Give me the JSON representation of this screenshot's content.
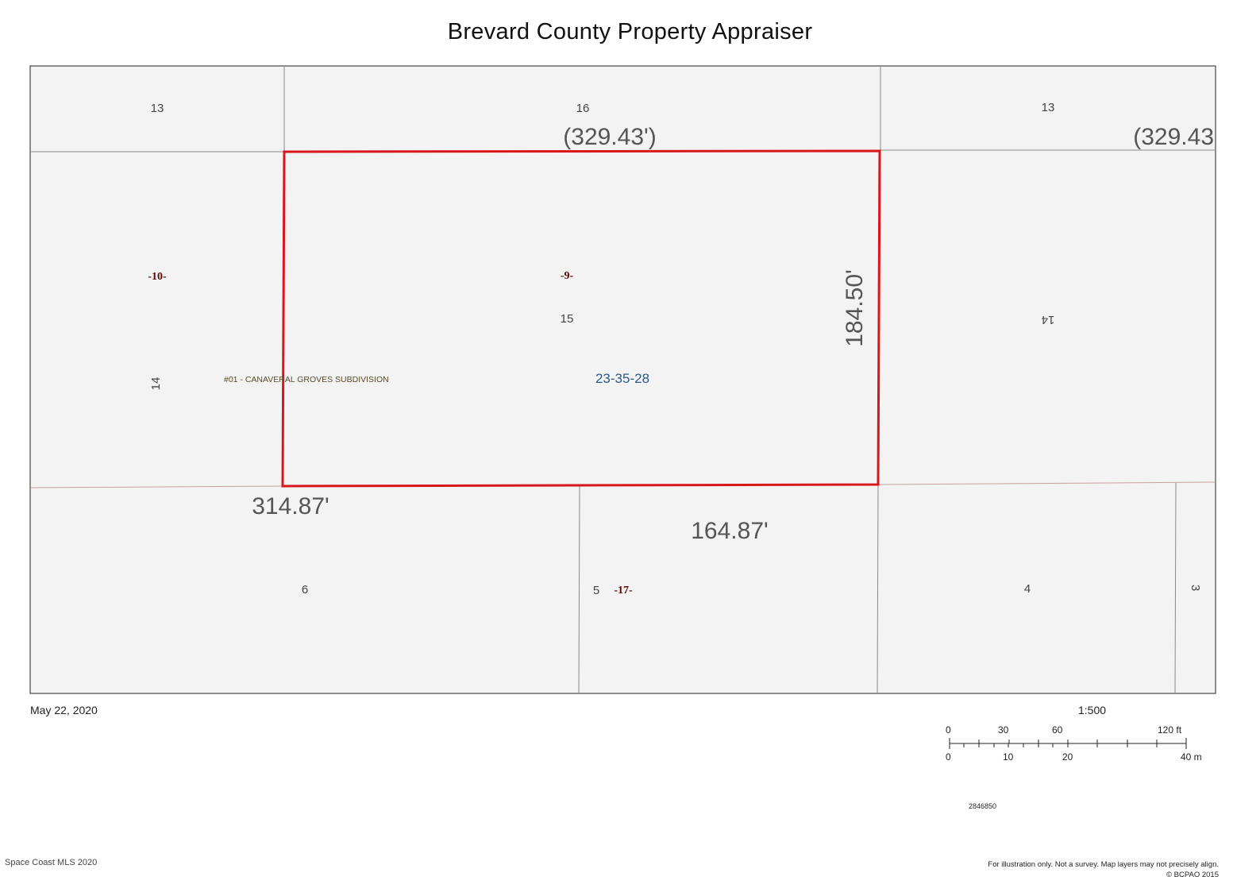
{
  "title": "Brevard County Property Appraiser",
  "map": {
    "background_color": "#f3f3f3",
    "border_color": "#222222",
    "lot_line_color": "#8a8a8a",
    "subject_outline_color": "#d9161c",
    "lot_numbers": [
      "13",
      "16",
      "13",
      "15",
      "14",
      "14",
      "6",
      "5",
      "4",
      "3"
    ],
    "block_numbers": [
      "-10-",
      "-9-",
      "-17-"
    ],
    "dimensions": {
      "top_middle": "(329.43')",
      "top_right": "(329.43",
      "right": "184.50'",
      "bottom_left": "314.87'",
      "bottom_middle": "164.87'"
    },
    "subdivision": "#01 - CANAVERAL GROVES SUBDIVISION",
    "parcel_id": "23-35-28",
    "parcel_id_color": "#2a5a8a",
    "block_label_color": "#5a0a0a",
    "subdivision_label_color": "#5a4a2a"
  },
  "footer": {
    "date": "May 22, 2020",
    "scale_ratio": "1:500",
    "scale_feet_labels": [
      "0",
      "30",
      "60",
      "120 ft"
    ],
    "scale_meter_labels": [
      "0",
      "10",
      "20",
      "40 m"
    ],
    "map_id": "2846850",
    "copyright_left": "Space Coast MLS 2020",
    "disclaimer": "For illustration only. Not a survey. Map layers may not precisely align.",
    "bcpao": "© BCPAO 2015"
  }
}
